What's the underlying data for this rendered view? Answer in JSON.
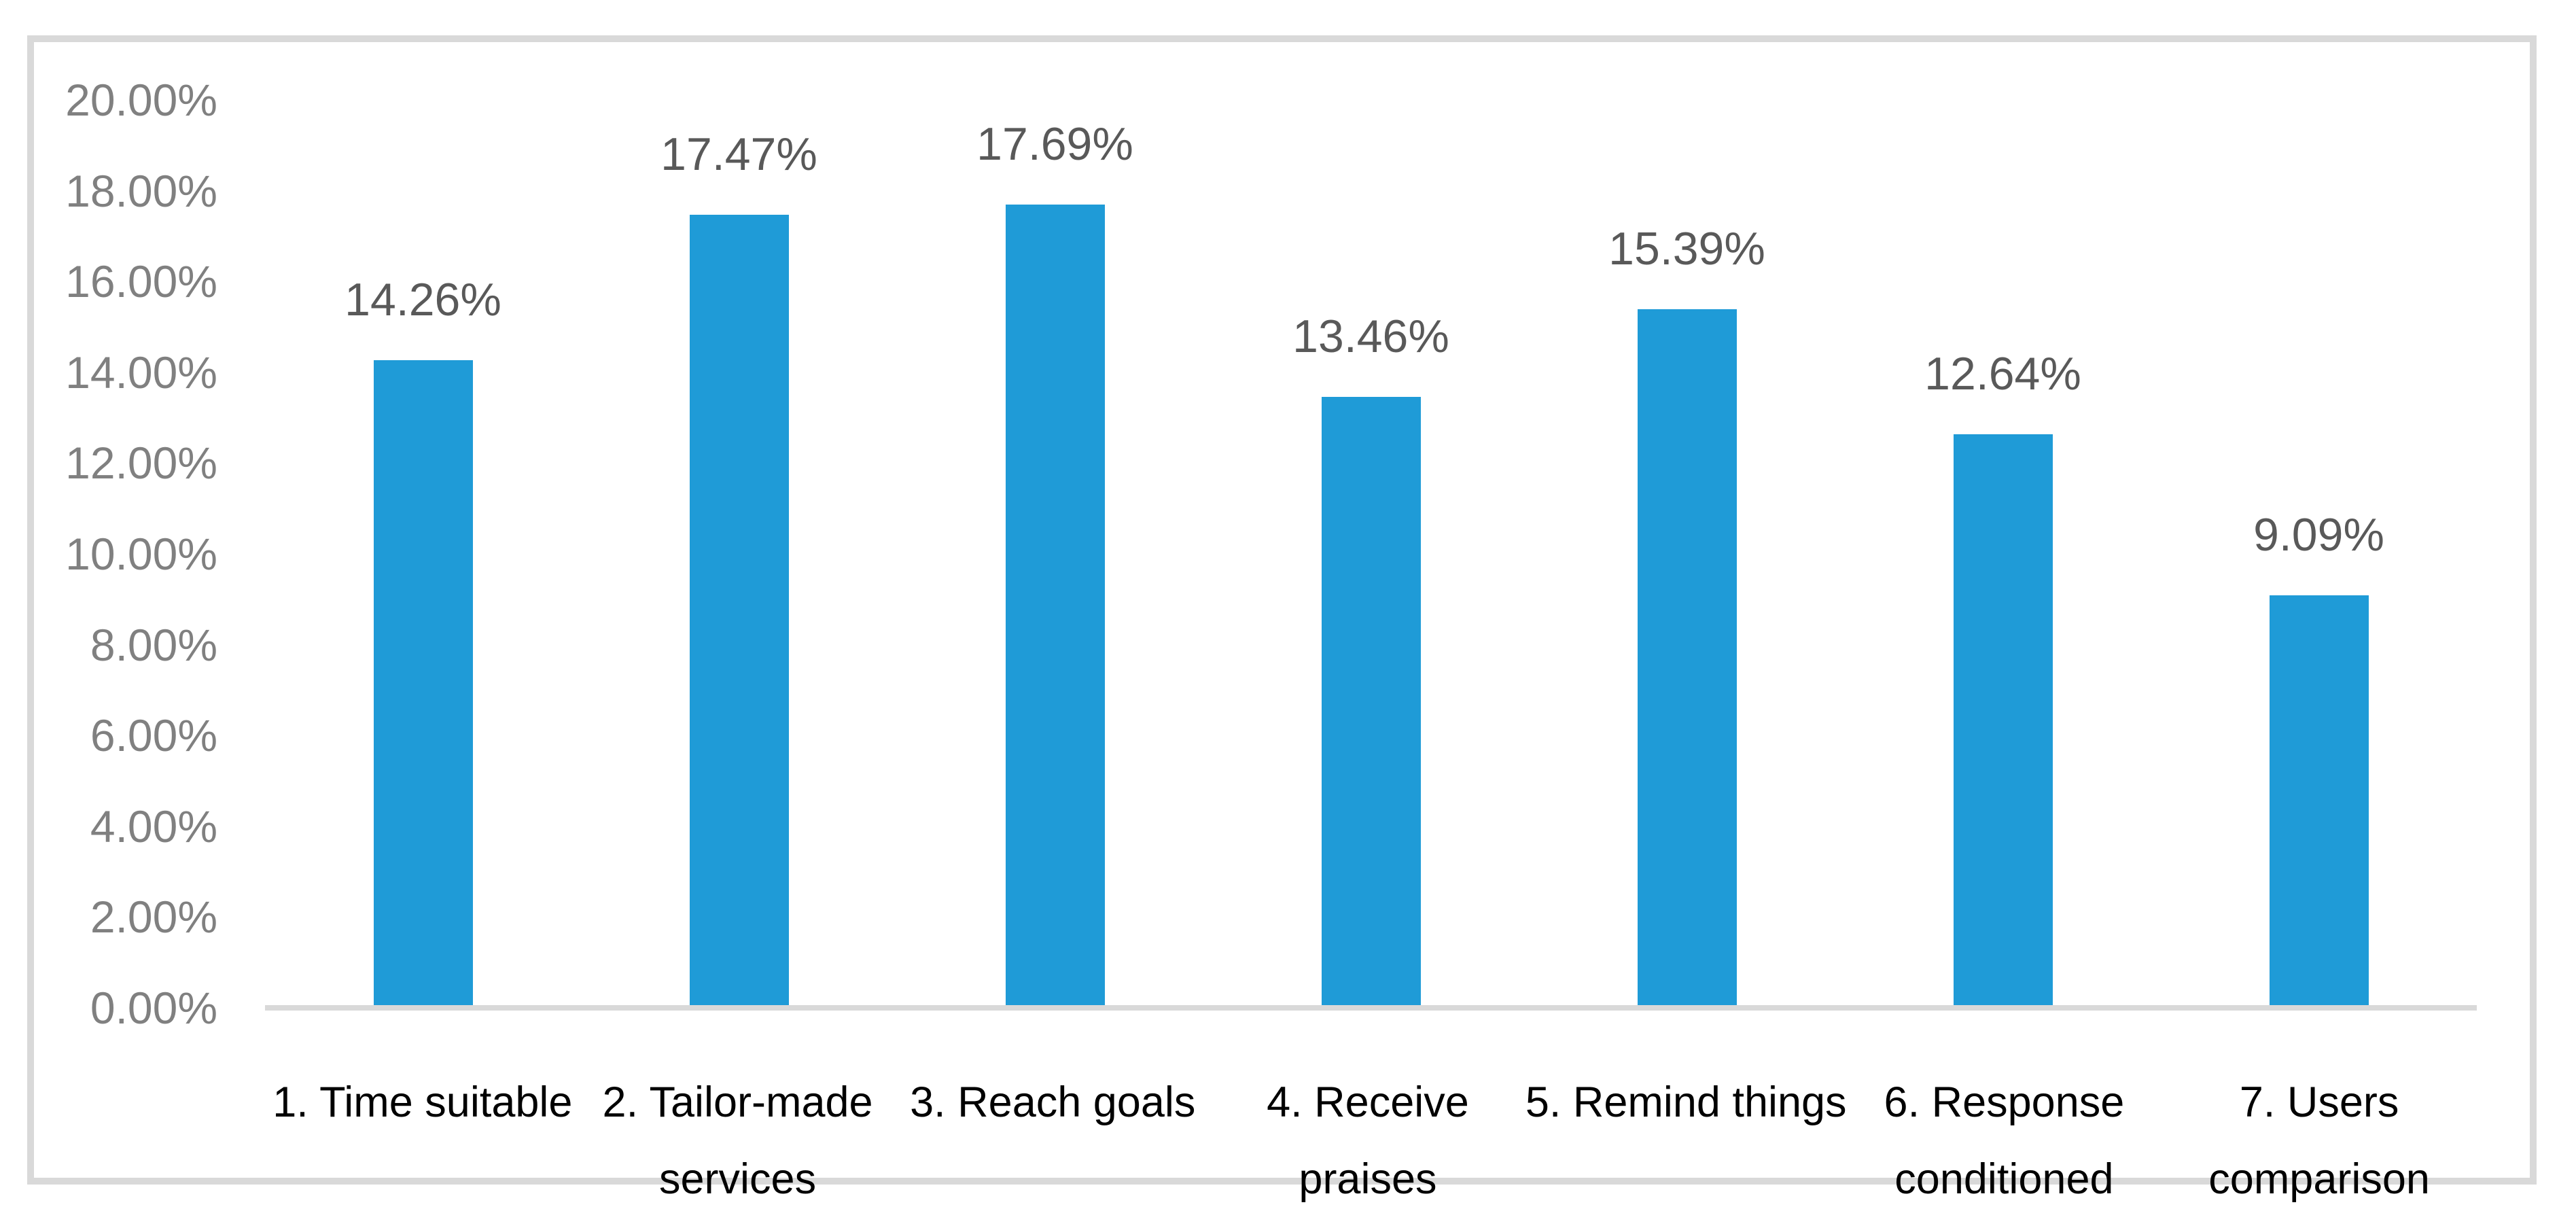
{
  "chart_data": {
    "type": "bar",
    "title": "",
    "xlabel": "",
    "ylabel": "",
    "categories": [
      "1. Time suitable",
      "2. Tailor-made services",
      "3. Reach goals",
      "4. Receive praises",
      "5. Remind things",
      "6. Response conditioned",
      "7. Users comparison"
    ],
    "category_lines": [
      [
        "1. Time suitable"
      ],
      [
        "2. Tailor-made",
        "services"
      ],
      [
        "3. Reach goals"
      ],
      [
        "4. Receive",
        "praises"
      ],
      [
        "5. Remind things"
      ],
      [
        "6. Response",
        "conditioned"
      ],
      [
        "7. Users",
        "comparison"
      ]
    ],
    "values": [
      14.26,
      17.47,
      17.69,
      13.46,
      15.39,
      12.64,
      9.09
    ],
    "data_labels": [
      "14.26%",
      "17.47%",
      "17.69%",
      "13.46%",
      "15.39%",
      "12.64%",
      "9.09%"
    ],
    "y_ticks": [
      "20.00%",
      "18.00%",
      "16.00%",
      "14.00%",
      "12.00%",
      "10.00%",
      "8.00%",
      "6.00%",
      "4.00%",
      "2.00%",
      "0.00%"
    ],
    "y_tick_values": [
      20,
      18,
      16,
      14,
      12,
      10,
      8,
      6,
      4,
      2,
      0
    ],
    "ylim": [
      0,
      20
    ],
    "grid": false,
    "legend": "none",
    "bar_color": "#1F9BD7",
    "axis_line_color": "#D9D9D9",
    "frame_border_color": "#D9D9D9",
    "axis_label_color": "#808080",
    "data_label_color": "#595959",
    "category_label_color": "#000000"
  }
}
